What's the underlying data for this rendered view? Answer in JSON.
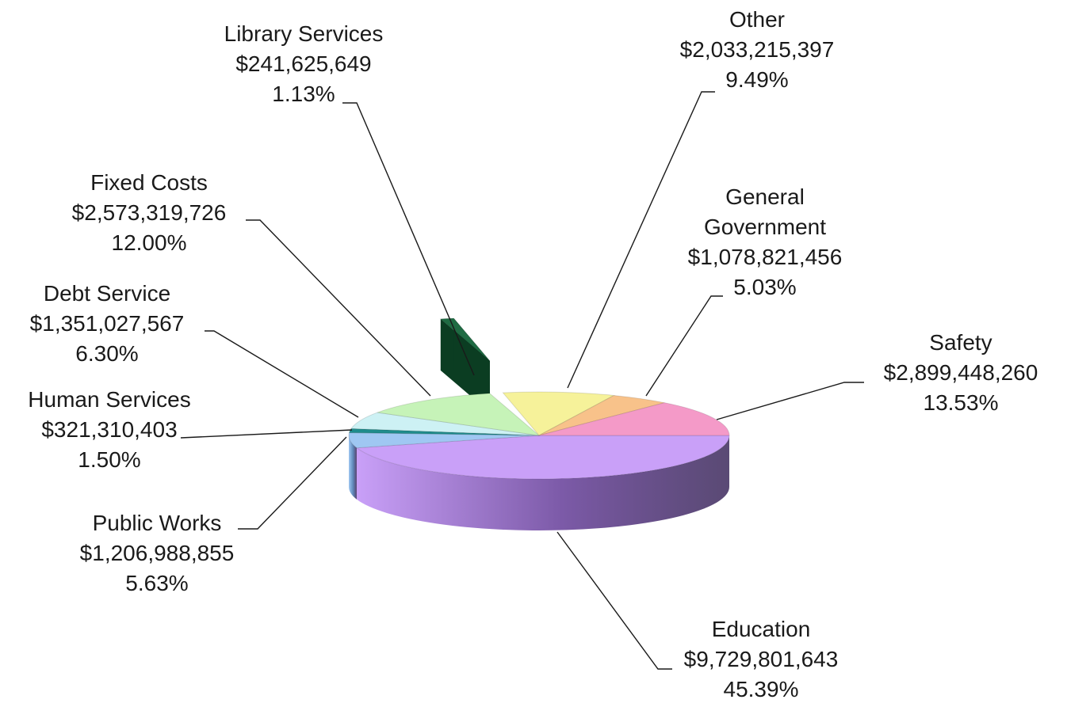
{
  "chart_data": {
    "type": "pie",
    "style": "3d-exploded",
    "slices": [
      {
        "name": "Education",
        "name_lines": [
          "Education"
        ],
        "value_label": "$9,729,801,643",
        "pct_label": "45.39%",
        "value": 9729801643,
        "pct": 45.39,
        "color": "#c9a0f8",
        "side": "#7c5aa8"
      },
      {
        "name": "Public Works",
        "name_lines": [
          "Public Works"
        ],
        "value_label": "$1,206,988,855",
        "pct_label": "5.63%",
        "value": 1206988855,
        "pct": 5.63,
        "color": "#9fc7f2",
        "side": "#5d86b8"
      },
      {
        "name": "Human Services",
        "name_lines": [
          "Human Services"
        ],
        "value_label": "$321,310,403",
        "pct_label": "1.50%",
        "value": 321310403,
        "pct": 1.5,
        "color": "#1f8c8c",
        "side": "#0f5a5a"
      },
      {
        "name": "Debt Service",
        "name_lines": [
          "Debt Service"
        ],
        "value_label": "$1,351,027,567",
        "pct_label": "6.30%",
        "value": 1351027567,
        "pct": 6.3,
        "color": "#cdf1f4",
        "side": "#86b8bd"
      },
      {
        "name": "Fixed Costs",
        "name_lines": [
          "Fixed Costs"
        ],
        "value_label": "$2,573,319,726",
        "pct_label": "12.00%",
        "value": 2573319726,
        "pct": 12.0,
        "color": "#c6f3b8",
        "side": "#84b97a"
      },
      {
        "name": "Library Services",
        "name_lines": [
          "Library Services"
        ],
        "value_label": "$241,625,649",
        "pct_label": "1.13%",
        "value": 241625649,
        "pct": 1.13,
        "color": "#1f6b43",
        "side": "#0b3d22"
      },
      {
        "name": "Other",
        "name_lines": [
          "Other"
        ],
        "value_label": "$2,033,215,397",
        "pct_label": "9.49%",
        "value": 2033215397,
        "pct": 9.49,
        "color": "#f6f29a",
        "side": "#b9b45e"
      },
      {
        "name": "General Government",
        "name_lines": [
          "General",
          "Government"
        ],
        "value_label": "$1,078,821,456",
        "pct_label": "5.03%",
        "value": 1078821456,
        "pct": 5.03,
        "color": "#f8c28a",
        "side": "#bb8650"
      },
      {
        "name": "Safety",
        "name_lines": [
          "Safety"
        ],
        "value_label": "$2,899,448,260",
        "pct_label": "13.53%",
        "value": 2899448260,
        "pct": 13.53,
        "color": "#f49ac8",
        "side": "#b35f8b"
      }
    ],
    "legend": "none",
    "labels": "outside-with-leader-lines"
  }
}
